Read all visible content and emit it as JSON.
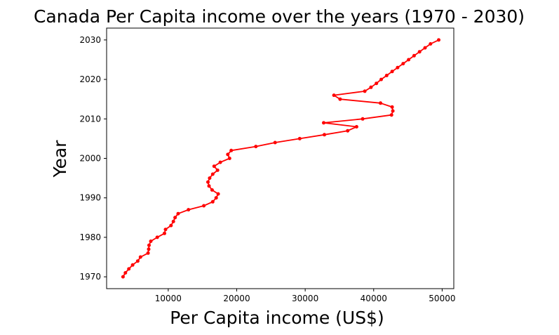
{
  "chart_data": {
    "type": "line",
    "title": "Canada Per Capita income over the years (1970 - 2030)",
    "xlabel": "Per Capita income (US$)",
    "ylabel": "Year",
    "xlim": [
      1000,
      51700
    ],
    "ylim": [
      1967,
      2033
    ],
    "xticks": [
      10000,
      20000,
      30000,
      40000,
      50000
    ],
    "yticks": [
      1970,
      1980,
      1990,
      2000,
      2010,
      2020,
      2030
    ],
    "grid": false,
    "series": [
      {
        "color": "#ff0000",
        "marker": "circle",
        "x": [
          3400,
          3750,
          4250,
          4800,
          5550,
          5950,
          7050,
          7150,
          7200,
          7450,
          8400,
          9450,
          9600,
          10400,
          10750,
          11000,
          11450,
          12950,
          15200,
          16500,
          17000,
          17300,
          16400,
          15950,
          15800,
          16050,
          16500,
          17200,
          16700,
          17600,
          18950,
          18700,
          19200,
          22800,
          25600,
          29200,
          32800,
          36200,
          37500,
          32700,
          38400,
          42600,
          42800,
          42700,
          41000,
          35100,
          34200,
          38700,
          39600,
          40400,
          41100,
          41900,
          42700,
          43500,
          44300,
          45100,
          45900,
          46700,
          47500,
          48300,
          49500
        ],
        "y": [
          1970,
          1971,
          1972,
          1973,
          1974,
          1975,
          1976,
          1977,
          1978,
          1979,
          1980,
          1981,
          1982,
          1983,
          1984,
          1985,
          1986,
          1987,
          1988,
          1989,
          1990,
          1991,
          1992,
          1993,
          1994,
          1995,
          1996,
          1997,
          1998,
          1999,
          2000,
          2001,
          2002,
          2003,
          2004,
          2005,
          2006,
          2007,
          2008,
          2009,
          2010,
          2011,
          2012,
          2013,
          2014,
          2015,
          2016,
          2017,
          2018,
          2019,
          2020,
          2021,
          2022,
          2023,
          2024,
          2025,
          2026,
          2027,
          2028,
          2029,
          2030
        ]
      }
    ]
  }
}
